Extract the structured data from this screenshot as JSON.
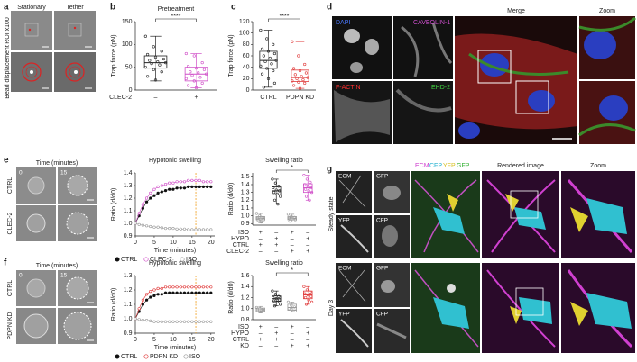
{
  "panel_labels": [
    "a",
    "b",
    "c",
    "d",
    "e",
    "f",
    "g"
  ],
  "panel_a": {
    "columns": [
      "Stationary",
      "Tether"
    ],
    "rows": [
      "ROI x100",
      "Bead displacement"
    ]
  },
  "panel_d": {
    "tiles": [
      "DAPI",
      "CAVEOLIN-1",
      "F-ACTIN",
      "EHD-2"
    ],
    "merge": "Merge",
    "zoom": "Zoom"
  },
  "panel_e_images": {
    "heading": "Time (minutes)",
    "times": [
      "0",
      "15"
    ],
    "rows": [
      "CTRL",
      "CLEC-2"
    ]
  },
  "panel_f_images": {
    "heading": "Time (minutes)",
    "times": [
      "0",
      "15"
    ],
    "rows": [
      "CTRL",
      "PDPN KD"
    ]
  },
  "panel_g": {
    "channels": [
      "ECM",
      "CFP",
      "YFP",
      "GFP"
    ],
    "rendered": "Rendered image",
    "zoom": "Zoom",
    "rows": [
      {
        "label": "Steady state",
        "tiles": [
          "ECM",
          "GFP",
          "YFP",
          "CFP"
        ]
      },
      {
        "label": "Day 3",
        "tiles": [
          "ECM",
          "GFP",
          "YFP",
          "CFP"
        ]
      }
    ]
  },
  "chart_data": [
    {
      "type": "box",
      "title": "Pretreatment",
      "ylabel": "Trap force (pN)",
      "xlabel": "CLEC-2",
      "categories": [
        "–",
        "+"
      ],
      "significance": "****",
      "ylim": [
        0,
        150
      ],
      "yticks": [
        0,
        50,
        100,
        150
      ],
      "groups": [
        {
          "color": "#222222",
          "whisker_low": 20,
          "q1": 48,
          "median": 60,
          "q3": 75,
          "whisker_high": 118,
          "points": [
            118,
            95,
            85,
            78,
            72,
            68,
            65,
            62,
            60,
            58,
            55,
            50,
            45,
            40,
            30,
            22
          ]
        },
        {
          "color": "#d04fc8",
          "whisker_low": 5,
          "q1": 20,
          "median": 35,
          "q3": 50,
          "whisker_high": 80,
          "points": [
            80,
            75,
            60,
            52,
            48,
            45,
            40,
            38,
            35,
            32,
            28,
            25,
            20,
            15,
            10,
            5
          ]
        }
      ]
    },
    {
      "type": "box",
      "ylabel": "Trap force (pN)",
      "categories": [
        "CTRL",
        "PDPN KD"
      ],
      "significance": "****",
      "ylim": [
        0,
        120
      ],
      "yticks": [
        0,
        20,
        40,
        60,
        80,
        100,
        120
      ],
      "groups": [
        {
          "color": "#222222",
          "whisker_low": 5,
          "q1": 38,
          "median": 52,
          "q3": 68,
          "whisker_high": 105,
          "points": [
            105,
            90,
            80,
            72,
            68,
            64,
            60,
            56,
            52,
            50,
            46,
            42,
            38,
            34,
            28,
            20,
            12,
            5
          ]
        },
        {
          "color": "#e03a3a",
          "whisker_low": 3,
          "q1": 15,
          "median": 22,
          "q3": 35,
          "whisker_high": 85,
          "points": [
            85,
            60,
            45,
            38,
            34,
            30,
            27,
            24,
            22,
            20,
            18,
            16,
            14,
            12,
            8,
            3
          ]
        }
      ]
    },
    {
      "type": "line",
      "title": "Hypotonic swelling",
      "xlabel": "Time (minutes)",
      "ylabel": "Ratio (d/d0)",
      "x": [
        0,
        1,
        2,
        3,
        4,
        5,
        6,
        7,
        8,
        9,
        10,
        11,
        12,
        13,
        14,
        15,
        16,
        17,
        18,
        19,
        20
      ],
      "xlim": [
        0,
        21
      ],
      "xticks": [
        0,
        5,
        10,
        15,
        20
      ],
      "ylim": [
        0.9,
        1.4
      ],
      "yticks": [
        0.9,
        {
          "value": 1,
          "label": "1.0"
        },
        1.1,
        1.2,
        1.3,
        1.4
      ],
      "reference_x": 16,
      "reference_color": "#f0a020",
      "series": [
        {
          "name": "CTRL",
          "color": "#111111",
          "marker": "filled",
          "values": [
            1.0,
            1.06,
            1.12,
            1.17,
            1.2,
            1.22,
            1.24,
            1.25,
            1.26,
            1.27,
            1.27,
            1.28,
            1.28,
            1.28,
            1.29,
            1.29,
            1.29,
            1.29,
            1.29,
            1.29,
            1.29
          ]
        },
        {
          "name": "CLEC-2",
          "color": "#d04fc8",
          "marker": "open",
          "values": [
            1.0,
            1.08,
            1.15,
            1.2,
            1.24,
            1.27,
            1.29,
            1.3,
            1.31,
            1.32,
            1.32,
            1.33,
            1.33,
            1.33,
            1.34,
            1.34,
            1.34,
            1.34,
            1.33,
            1.33,
            1.33
          ]
        },
        {
          "name": "ISO",
          "color": "#999999",
          "marker": "open",
          "values": [
            1.0,
            0.99,
            0.985,
            0.98,
            0.975,
            0.97,
            0.97,
            0.965,
            0.96,
            0.96,
            0.96,
            0.955,
            0.955,
            0.955,
            0.95,
            0.95,
            0.95,
            0.95,
            0.95,
            0.95,
            0.95
          ]
        }
      ]
    },
    {
      "type": "box",
      "title": "Swelling ratio",
      "ylabel": "Ratio (d/d0)",
      "significance": "*",
      "ylim": [
        0.88,
        1.55
      ],
      "yticks": [
        0.9,
        {
          "value": 1,
          "label": "1.0"
        },
        1.1,
        1.2,
        1.3,
        1.4,
        1.5
      ],
      "conditions": [
        {
          "label": "ISO",
          "cells": [
            "+",
            "–",
            "+",
            "–"
          ]
        },
        {
          "label": "HYPO",
          "cells": [
            "–",
            "+",
            "–",
            "+"
          ]
        },
        {
          "label": "CTRL",
          "cells": [
            "+",
            "+",
            "–",
            "–"
          ]
        },
        {
          "label": "CLEC-2",
          "cells": [
            "–",
            "–",
            "+",
            "+"
          ]
        }
      ],
      "groups": [
        {
          "color": "#999999",
          "whisker_low": 0.91,
          "q1": 0.95,
          "median": 0.97,
          "q3": 0.99,
          "whisker_high": 1.03,
          "points": [
            1.03,
            1.0,
            0.98,
            0.97,
            0.96,
            0.95,
            0.94,
            0.92
          ]
        },
        {
          "color": "#222222",
          "whisker_low": 1.15,
          "q1": 1.27,
          "median": 1.32,
          "q3": 1.37,
          "whisker_high": 1.47,
          "points": [
            1.47,
            1.42,
            1.38,
            1.36,
            1.33,
            1.32,
            1.3,
            1.28,
            1.25,
            1.2,
            1.15
          ]
        },
        {
          "color": "#999999",
          "whisker_low": 0.92,
          "q1": 0.95,
          "median": 0.97,
          "q3": 0.99,
          "whisker_high": 1.02,
          "points": [
            1.02,
            0.99,
            0.98,
            0.97,
            0.96,
            0.95,
            0.93
          ]
        },
        {
          "color": "#d04fc8",
          "whisker_low": 1.2,
          "q1": 1.3,
          "median": 1.36,
          "q3": 1.41,
          "whisker_high": 1.52,
          "points": [
            1.52,
            1.47,
            1.43,
            1.4,
            1.38,
            1.36,
            1.34,
            1.32,
            1.3,
            1.25,
            1.2
          ]
        }
      ]
    },
    {
      "type": "line",
      "title": "Hypotonic swelling",
      "xlabel": "Time (minutes)",
      "ylabel": "Ratio (d/d0)",
      "x": [
        0,
        1,
        2,
        3,
        4,
        5,
        6,
        7,
        8,
        9,
        10,
        11,
        12,
        13,
        14,
        15,
        16,
        17,
        18,
        19,
        20
      ],
      "xlim": [
        0,
        21
      ],
      "xticks": [
        0,
        5,
        10,
        15,
        20
      ],
      "ylim": [
        0.9,
        1.3
      ],
      "yticks": [
        0.9,
        {
          "value": 1,
          "label": "1.0"
        },
        1.1,
        1.2,
        1.3
      ],
      "reference_x": 16,
      "reference_color": "#f0a020",
      "series": [
        {
          "name": "CTRL",
          "color": "#111111",
          "marker": "filled",
          "values": [
            1.0,
            1.05,
            1.1,
            1.13,
            1.15,
            1.16,
            1.17,
            1.17,
            1.18,
            1.18,
            1.18,
            1.18,
            1.18,
            1.18,
            1.18,
            1.18,
            1.18,
            1.18,
            1.18,
            1.18,
            1.18
          ]
        },
        {
          "name": "PDPN KD",
          "color": "#e03a3a",
          "marker": "open",
          "values": [
            1.0,
            1.07,
            1.13,
            1.17,
            1.19,
            1.2,
            1.21,
            1.21,
            1.22,
            1.22,
            1.22,
            1.22,
            1.22,
            1.22,
            1.22,
            1.22,
            1.22,
            1.22,
            1.22,
            1.22,
            1.22
          ]
        },
        {
          "name": "ISO",
          "color": "#999999",
          "marker": "open",
          "values": [
            1.0,
            0.995,
            0.99,
            0.99,
            0.985,
            0.98,
            0.98,
            0.98,
            0.98,
            0.98,
            0.98,
            0.98,
            0.98,
            0.98,
            0.98,
            0.98,
            0.98,
            0.98,
            0.98,
            0.98,
            0.98
          ]
        }
      ]
    },
    {
      "type": "box",
      "title": "Swelling ratio",
      "ylabel": "Ratio (d/d0)",
      "significance": "*",
      "ylim": [
        0.8,
        1.6
      ],
      "yticks": [
        0.8,
        {
          "value": 1,
          "label": "1.0"
        },
        1.2,
        1.4,
        1.6
      ],
      "conditions": [
        {
          "label": "ISO",
          "cells": [
            "+",
            "–",
            "+",
            "–"
          ]
        },
        {
          "label": "HYPO",
          "cells": [
            "–",
            "+",
            "–",
            "+"
          ]
        },
        {
          "label": "CTRL",
          "cells": [
            "+",
            "+",
            "–",
            "–"
          ]
        },
        {
          "label": "KD",
          "cells": [
            "–",
            "–",
            "+",
            "+"
          ]
        }
      ],
      "groups": [
        {
          "color": "#999999",
          "whisker_low": 0.92,
          "q1": 0.95,
          "median": 0.98,
          "q3": 1.01,
          "whisker_high": 1.04,
          "points": [
            1.02,
            1.0,
            0.98,
            0.96,
            0.94
          ]
        },
        {
          "color": "#222222",
          "whisker_low": 1.05,
          "q1": 1.13,
          "median": 1.18,
          "q3": 1.23,
          "whisker_high": 1.32,
          "points": [
            1.32,
            1.26,
            1.22,
            1.2,
            1.18,
            1.16,
            1.14,
            1.12,
            1.08,
            1.05
          ]
        },
        {
          "color": "#999999",
          "whisker_low": 0.94,
          "q1": 0.97,
          "median": 1.02,
          "q3": 1.08,
          "whisker_high": 1.12,
          "points": [
            1.12,
            1.06,
            1.03,
            1.0,
            0.98,
            0.96
          ]
        },
        {
          "color": "#e03a3a",
          "whisker_low": 1.08,
          "q1": 1.18,
          "median": 1.25,
          "q3": 1.32,
          "whisker_high": 1.4,
          "points": [
            1.4,
            1.34,
            1.3,
            1.27,
            1.25,
            1.22,
            1.2,
            1.16,
            1.12,
            1.08
          ]
        }
      ]
    }
  ]
}
